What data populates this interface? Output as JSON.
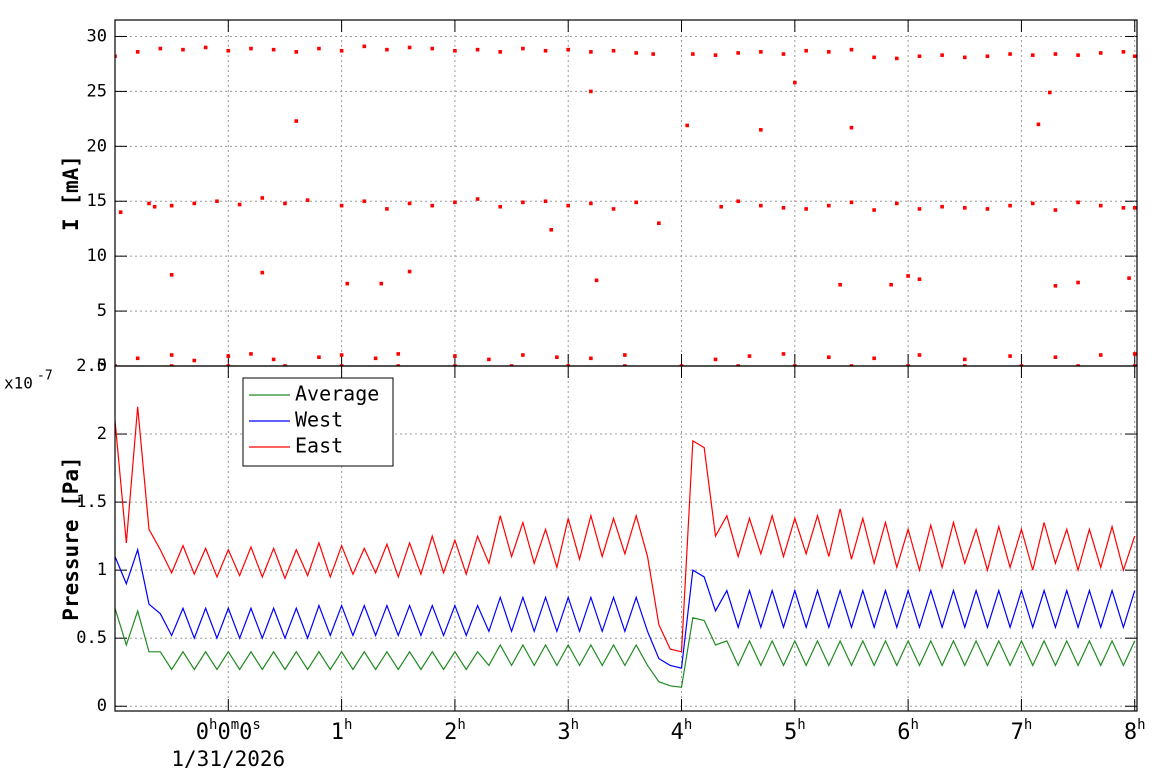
{
  "chart_data": [
    {
      "type": "scatter",
      "ylabel": "I [mA]",
      "xlim": [
        -1,
        8.02
      ],
      "ylim": [
        0,
        31.5
      ],
      "xticks": [
        0,
        1,
        2,
        3,
        4,
        5,
        6,
        7,
        8
      ],
      "yticks": [
        0,
        5,
        10,
        15,
        20,
        25,
        30
      ],
      "grid": true,
      "series": [
        {
          "color": "#ff0000",
          "x": [
            -1,
            -0.8,
            -0.6,
            -0.4,
            -0.2,
            0,
            0.2,
            0.4,
            0.6,
            0.8,
            1,
            1.2,
            1.4,
            1.6,
            1.8,
            2,
            2.2,
            2.4,
            2.6,
            2.8,
            3,
            3.2,
            3.4,
            3.6,
            3.75,
            4.1,
            4.3,
            4.5,
            4.7,
            4.9,
            5.1,
            5.3,
            5.5,
            5.7,
            5.9,
            6.1,
            6.3,
            6.5,
            6.7,
            6.9,
            7.1,
            7.3,
            7.5,
            7.7,
            7.9,
            8.0
          ],
          "values": [
            28.2,
            28.6,
            28.9,
            28.8,
            29.0,
            28.7,
            28.9,
            28.8,
            28.6,
            28.9,
            28.7,
            29.1,
            28.8,
            29.0,
            28.9,
            28.7,
            28.8,
            28.6,
            28.9,
            28.7,
            28.8,
            28.6,
            28.7,
            28.5,
            28.4,
            28.4,
            28.3,
            28.5,
            28.6,
            28.4,
            28.7,
            28.6,
            28.8,
            28.1,
            28.0,
            28.2,
            28.3,
            28.1,
            28.2,
            28.4,
            28.3,
            28.4,
            28.3,
            28.5,
            28.6,
            28.2
          ]
        },
        {
          "color": "#ff0000",
          "x": [
            -0.95,
            -0.7,
            -0.65,
            -0.5,
            -0.3,
            -0.1,
            0.1,
            0.3,
            0.5,
            0.7,
            1.0,
            1.2,
            1.4,
            1.6,
            1.8,
            2.0,
            2.2,
            2.4,
            2.6,
            2.8,
            3.0,
            3.2,
            3.4,
            3.6,
            3.8,
            4.35,
            4.5,
            4.7,
            4.9,
            5.1,
            5.3,
            5.5,
            5.7,
            5.9,
            6.1,
            6.3,
            6.5,
            6.7,
            6.9,
            7.1,
            7.3,
            7.5,
            7.7,
            7.9,
            8.0
          ],
          "values": [
            14.0,
            14.8,
            14.5,
            14.6,
            14.8,
            15.0,
            14.7,
            15.3,
            14.8,
            15.1,
            14.6,
            15.0,
            14.3,
            14.8,
            14.6,
            14.9,
            15.2,
            14.5,
            14.9,
            15.0,
            14.6,
            14.8,
            14.3,
            14.9,
            13.0,
            14.5,
            15.0,
            14.6,
            14.4,
            14.3,
            14.6,
            14.9,
            14.2,
            14.8,
            14.3,
            14.5,
            14.4,
            14.3,
            14.6,
            14.8,
            14.2,
            14.9,
            14.6,
            14.4,
            14.4
          ]
        },
        {
          "color": "#ff0000",
          "x": [
            0.6,
            4.7,
            5.5,
            7.15,
            5.0,
            3.2,
            7.25,
            -0.5,
            0.3,
            1.6,
            1.05,
            1.35,
            3.25,
            5.4,
            5.85,
            6.0,
            6.1,
            7.3,
            7.5,
            7.95,
            2.85,
            4.05
          ],
          "values": [
            22.3,
            21.5,
            21.7,
            22.0,
            25.8,
            25.0,
            24.9,
            8.3,
            8.5,
            8.6,
            7.5,
            7.5,
            7.8,
            7.4,
            7.4,
            8.2,
            7.9,
            7.3,
            7.6,
            8.0,
            12.4,
            21.9
          ]
        },
        {
          "color": "#ff0000",
          "x": [
            -0.8,
            -0.5,
            -0.3,
            0,
            0.2,
            0.4,
            0.8,
            1.0,
            1.3,
            1.5,
            2.0,
            2.3,
            2.6,
            2.9,
            3.2,
            3.5,
            4.3,
            4.6,
            4.9,
            5.3,
            5.7,
            6.1,
            6.5,
            6.9,
            7.3,
            7.7,
            8.0
          ],
          "values": [
            0.7,
            1.0,
            0.5,
            0.9,
            1.1,
            0.6,
            0.8,
            1.0,
            0.7,
            1.1,
            0.9,
            0.6,
            1.0,
            0.8,
            0.7,
            1.0,
            0.6,
            0.9,
            1.1,
            0.8,
            0.7,
            1.0,
            0.6,
            0.9,
            0.8,
            1.0,
            1.1
          ]
        },
        {
          "color": "#ff0000",
          "x": [
            -1,
            -0.5,
            0,
            0.5,
            1,
            1.5,
            2,
            2.5,
            3,
            3.5,
            4,
            4.5,
            5,
            5.5,
            6,
            6.5,
            7,
            7.5,
            8
          ],
          "values": [
            0,
            0,
            0,
            0,
            0,
            0,
            0,
            0,
            0,
            0,
            0,
            0,
            0,
            0,
            0,
            0,
            0,
            0,
            0
          ]
        }
      ]
    },
    {
      "type": "line",
      "ylabel": "Pressure [Pa]",
      "axis_multiplier": "x10",
      "axis_multiplier_exponent": "-7",
      "time_offset_label": "1/31/2026",
      "xlim": [
        -1,
        8.02
      ],
      "ylim": [
        -0.035,
        2.5
      ],
      "xticks": [
        {
          "value": 0,
          "label": "0h0m0s"
        },
        {
          "value": 1,
          "label": "1h"
        },
        {
          "value": 2,
          "label": "2h"
        },
        {
          "value": 3,
          "label": "3h"
        },
        {
          "value": 4,
          "label": "4h"
        },
        {
          "value": 5,
          "label": "5h"
        },
        {
          "value": 6,
          "label": "6h"
        },
        {
          "value": 7,
          "label": "7h"
        },
        {
          "value": 8,
          "label": "8h"
        }
      ],
      "yticks": [
        0,
        0.5,
        1,
        1.5,
        2,
        2.5
      ],
      "grid": true,
      "legend": "top-left",
      "x": [
        -1,
        -0.9,
        -0.8,
        -0.7,
        -0.6,
        -0.5,
        -0.4,
        -0.3,
        -0.2,
        -0.1,
        0,
        0.1,
        0.2,
        0.3,
        0.4,
        0.5,
        0.6,
        0.7,
        0.8,
        0.9,
        1,
        1.1,
        1.2,
        1.3,
        1.4,
        1.5,
        1.6,
        1.7,
        1.8,
        1.9,
        2,
        2.1,
        2.2,
        2.3,
        2.4,
        2.5,
        2.6,
        2.7,
        2.8,
        2.9,
        3,
        3.1,
        3.2,
        3.3,
        3.4,
        3.5,
        3.6,
        3.7,
        3.8,
        3.9,
        4,
        4.1,
        4.2,
        4.3,
        4.4,
        4.5,
        4.6,
        4.7,
        4.8,
        4.9,
        5,
        5.1,
        5.2,
        5.3,
        5.4,
        5.5,
        5.6,
        5.7,
        5.8,
        5.9,
        6,
        6.1,
        6.2,
        6.3,
        6.4,
        6.5,
        6.6,
        6.7,
        6.8,
        6.9,
        7,
        7.1,
        7.2,
        7.3,
        7.4,
        7.5,
        7.6,
        7.7,
        7.8,
        7.9,
        8
      ],
      "series": [
        {
          "name": "East",
          "color": "#ff0000",
          "values": [
            2.1,
            1.2,
            2.2,
            1.3,
            1.15,
            0.98,
            1.18,
            0.97,
            1.16,
            0.95,
            1.15,
            0.96,
            1.17,
            0.95,
            1.16,
            0.94,
            1.15,
            0.96,
            1.2,
            0.95,
            1.18,
            0.97,
            1.16,
            0.98,
            1.19,
            0.95,
            1.2,
            0.97,
            1.25,
            0.98,
            1.22,
            0.97,
            1.25,
            1.05,
            1.4,
            1.1,
            1.35,
            1.05,
            1.3,
            1.02,
            1.38,
            1.08,
            1.4,
            1.1,
            1.38,
            1.12,
            1.4,
            1.1,
            0.6,
            0.42,
            0.4,
            1.95,
            1.9,
            1.25,
            1.4,
            1.1,
            1.38,
            1.12,
            1.4,
            1.1,
            1.38,
            1.12,
            1.4,
            1.1,
            1.45,
            1.08,
            1.38,
            1.05,
            1.35,
            1.02,
            1.3,
            1.0,
            1.33,
            1.02,
            1.35,
            1.05,
            1.3,
            1.0,
            1.32,
            1.02,
            1.3,
            1.0,
            1.35,
            1.05,
            1.3,
            1.0,
            1.3,
            1.02,
            1.32,
            1.0,
            1.25
          ]
        },
        {
          "name": "West",
          "color": "#0000ff",
          "values": [
            1.1,
            0.9,
            1.15,
            0.75,
            0.68,
            0.52,
            0.72,
            0.5,
            0.72,
            0.5,
            0.72,
            0.5,
            0.72,
            0.5,
            0.72,
            0.5,
            0.72,
            0.5,
            0.74,
            0.52,
            0.74,
            0.52,
            0.74,
            0.52,
            0.74,
            0.52,
            0.74,
            0.52,
            0.74,
            0.52,
            0.74,
            0.52,
            0.74,
            0.55,
            0.8,
            0.55,
            0.8,
            0.55,
            0.8,
            0.55,
            0.8,
            0.55,
            0.8,
            0.55,
            0.8,
            0.55,
            0.8,
            0.55,
            0.35,
            0.3,
            0.28,
            1.0,
            0.95,
            0.7,
            0.85,
            0.58,
            0.85,
            0.58,
            0.85,
            0.58,
            0.85,
            0.58,
            0.85,
            0.58,
            0.85,
            0.58,
            0.85,
            0.58,
            0.85,
            0.58,
            0.85,
            0.58,
            0.85,
            0.58,
            0.85,
            0.58,
            0.85,
            0.58,
            0.85,
            0.58,
            0.85,
            0.58,
            0.85,
            0.58,
            0.85,
            0.58,
            0.85,
            0.58,
            0.85,
            0.58,
            0.85
          ]
        },
        {
          "name": "Average",
          "color": "#228b22",
          "values": [
            0.72,
            0.45,
            0.7,
            0.4,
            0.4,
            0.27,
            0.4,
            0.27,
            0.4,
            0.27,
            0.4,
            0.27,
            0.4,
            0.27,
            0.4,
            0.27,
            0.4,
            0.27,
            0.4,
            0.27,
            0.4,
            0.27,
            0.4,
            0.27,
            0.4,
            0.27,
            0.4,
            0.27,
            0.4,
            0.27,
            0.4,
            0.27,
            0.4,
            0.3,
            0.45,
            0.3,
            0.45,
            0.3,
            0.45,
            0.3,
            0.45,
            0.3,
            0.45,
            0.3,
            0.45,
            0.3,
            0.45,
            0.3,
            0.18,
            0.15,
            0.14,
            0.65,
            0.63,
            0.45,
            0.48,
            0.3,
            0.48,
            0.3,
            0.48,
            0.3,
            0.48,
            0.3,
            0.48,
            0.3,
            0.48,
            0.3,
            0.48,
            0.3,
            0.48,
            0.3,
            0.48,
            0.3,
            0.48,
            0.3,
            0.48,
            0.3,
            0.48,
            0.3,
            0.48,
            0.3,
            0.48,
            0.3,
            0.48,
            0.3,
            0.48,
            0.3,
            0.48,
            0.3,
            0.48,
            0.3,
            0.48
          ]
        }
      ]
    }
  ]
}
